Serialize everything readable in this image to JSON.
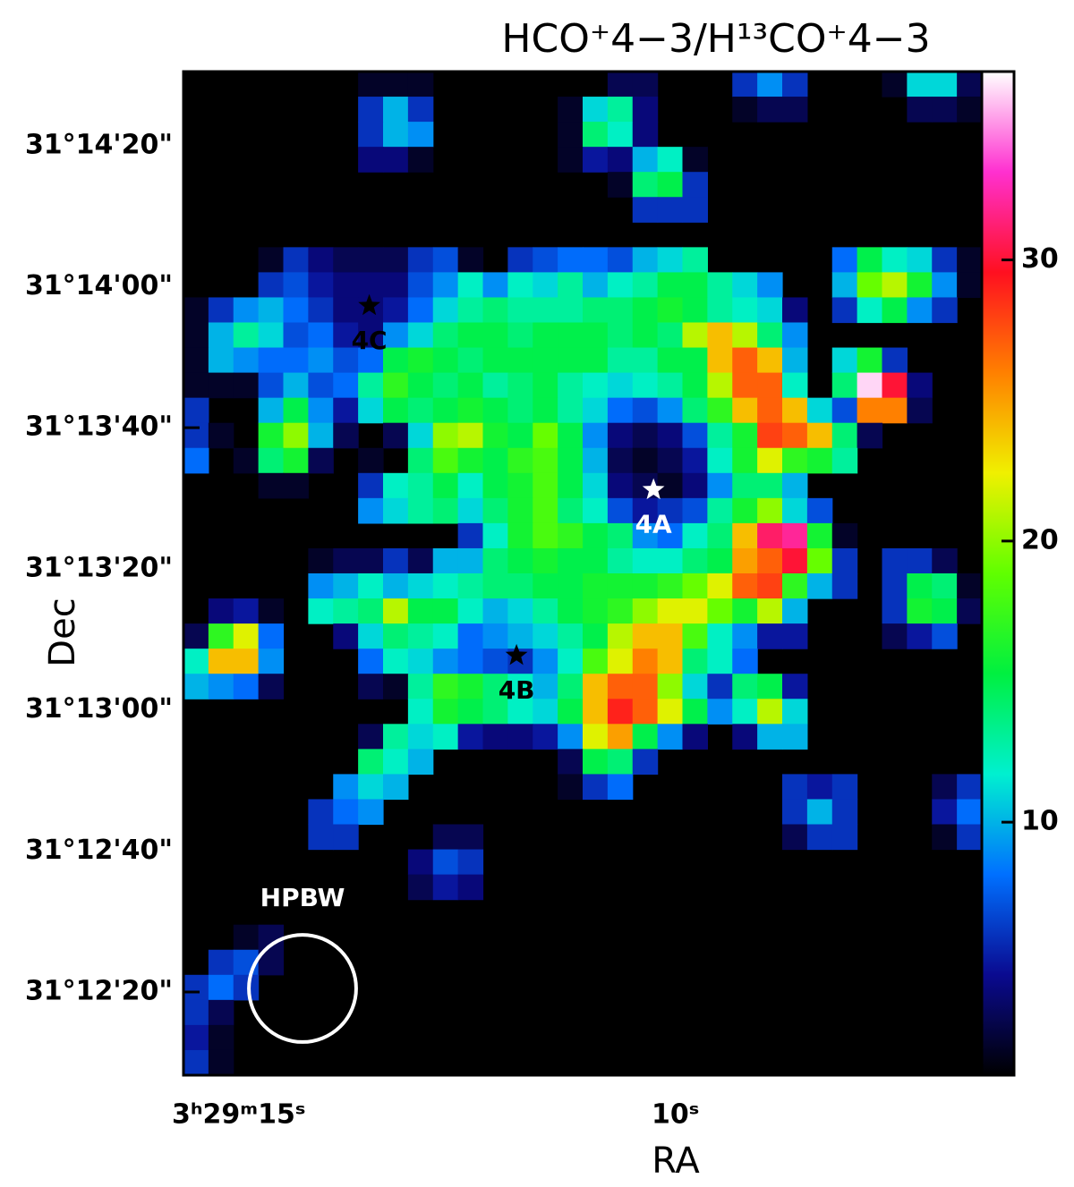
{
  "chart_data": {
    "type": "heatmap",
    "title": "HCO⁺4−3/H¹³CO⁺4−3",
    "x_label": "RA",
    "y_label": "Dec",
    "xlim": [
      16.55,
      6.41
    ],
    "xticks": [
      {
        "value": 15,
        "label": "3ʰ29ᵐ15ˢ"
      },
      {
        "value": 10,
        "label": "10ˢ"
      }
    ],
    "ylim": [
      728.2,
      870.5
    ],
    "yticks": [
      {
        "value": 860,
        "label": "31°14'20\""
      },
      {
        "value": 840,
        "label": "31°14'00\""
      },
      {
        "value": 820,
        "label": "31°13'40\""
      },
      {
        "value": 800,
        "label": "31°13'20\""
      },
      {
        "value": 780,
        "label": "31°13'00\""
      },
      {
        "value": 760,
        "label": "31°12'40\""
      },
      {
        "value": 740,
        "label": "31°12'20\""
      }
    ],
    "zlim": [
      1.0,
      36.7
    ],
    "zticks": [
      10,
      20,
      30
    ],
    "colorscale": [
      "#000000",
      "#0a0a90",
      "#0070ff",
      "#00f0d0",
      "#00f040",
      "#60ff00",
      "#f0f000",
      "#ff8000",
      "#ff1020",
      "#ff30d0",
      "#ffffff"
    ],
    "background": "#000000",
    "sources": [
      {
        "name": "4A",
        "ra": 10.58,
        "dec": 811.2,
        "color": "#ffffff"
      },
      {
        "name": "4B",
        "ra": 12.32,
        "dec": 787.7,
        "color": "#000000"
      },
      {
        "name": "4C",
        "ra": 14.19,
        "dec": 837.3,
        "color": "#000000"
      }
    ],
    "beam": {
      "label": "HPBW",
      "diameter": 15.2,
      "color": "#ffffff"
    },
    "values": [
      [
        null,
        null,
        null,
        null,
        null,
        null,
        null,
        2,
        2,
        2,
        null,
        null,
        null,
        null,
        null,
        null,
        null,
        3,
        3,
        null,
        null,
        null,
        6,
        9,
        6,
        null,
        null,
        null,
        2,
        11,
        11,
        3
      ],
      [
        null,
        null,
        null,
        null,
        null,
        null,
        null,
        6,
        10,
        6,
        null,
        null,
        null,
        null,
        null,
        2,
        11,
        13,
        4,
        null,
        null,
        null,
        2,
        3,
        3,
        null,
        null,
        null,
        null,
        3,
        3,
        2
      ],
      [
        null,
        null,
        null,
        null,
        null,
        null,
        null,
        6,
        10,
        9,
        null,
        null,
        null,
        null,
        null,
        2,
        14,
        12,
        4,
        null,
        null,
        null,
        null,
        null,
        null,
        null,
        null,
        null,
        null,
        null,
        null,
        null
      ],
      [
        null,
        null,
        null,
        null,
        null,
        null,
        null,
        4,
        4,
        2,
        null,
        null,
        null,
        null,
        null,
        2,
        5,
        4,
        10,
        12,
        2,
        null,
        null,
        null,
        null,
        null,
        null,
        null,
        null,
        null,
        null,
        null
      ],
      [
        null,
        null,
        null,
        null,
        null,
        null,
        null,
        null,
        null,
        null,
        null,
        null,
        null,
        null,
        null,
        null,
        null,
        2,
        14,
        15,
        6,
        null,
        null,
        null,
        null,
        null,
        null,
        null,
        null,
        null,
        null,
        null
      ],
      [
        null,
        null,
        null,
        null,
        null,
        null,
        null,
        null,
        null,
        null,
        null,
        null,
        null,
        null,
        null,
        null,
        null,
        null,
        6,
        6,
        6,
        null,
        null,
        null,
        null,
        null,
        null,
        null,
        null,
        null,
        null,
        null
      ],
      [
        null,
        null,
        null,
        null,
        null,
        null,
        null,
        null,
        null,
        null,
        null,
        null,
        null,
        null,
        null,
        null,
        null,
        null,
        null,
        null,
        null,
        null,
        null,
        null,
        null,
        null,
        null,
        null,
        null,
        null,
        null,
        null
      ],
      [
        null,
        null,
        null,
        2,
        6,
        4,
        3,
        3,
        3,
        6,
        7,
        2,
        null,
        6,
        7,
        8,
        8,
        7,
        10,
        11,
        13,
        null,
        null,
        null,
        null,
        null,
        8,
        15,
        12,
        11,
        6,
        2
      ],
      [
        null,
        null,
        null,
        6,
        7,
        5,
        4,
        4,
        4,
        7,
        9,
        12,
        9,
        12,
        11,
        13,
        10,
        12,
        13,
        15,
        15,
        13,
        11,
        9,
        null,
        null,
        10,
        19,
        21,
        16,
        9,
        2
      ],
      [
        2,
        6,
        9,
        10,
        8,
        6,
        4,
        4,
        5,
        8,
        11,
        13,
        14,
        13,
        13,
        13,
        14,
        14,
        15,
        16,
        15,
        13,
        12,
        11,
        4,
        null,
        6,
        12,
        15,
        9,
        6,
        null
      ],
      [
        2,
        10,
        13,
        11,
        7,
        8,
        5,
        4,
        9,
        11,
        14,
        15,
        15,
        14,
        15,
        15,
        15,
        14,
        15,
        14,
        21,
        24,
        21,
        14,
        9,
        null,
        null,
        null,
        null,
        null,
        null,
        null
      ],
      [
        2,
        10,
        9,
        8,
        8,
        9,
        7,
        8,
        15,
        16,
        15,
        14,
        15,
        15,
        15,
        15,
        15,
        13,
        13,
        15,
        15,
        24,
        27,
        24,
        10,
        null,
        11,
        16,
        6,
        null,
        null,
        null
      ],
      [
        2,
        2,
        2,
        7,
        10,
        7,
        8,
        13,
        17,
        15,
        14,
        15,
        13,
        14,
        15,
        13,
        12,
        11,
        12,
        13,
        15,
        21,
        27,
        27,
        12,
        null,
        14,
        36,
        30,
        4,
        null,
        null
      ],
      [
        6,
        null,
        null,
        10,
        15,
        9,
        5,
        11,
        15,
        14,
        15,
        16,
        15,
        14,
        15,
        13,
        11,
        8,
        7,
        9,
        14,
        17,
        24,
        27,
        24,
        11,
        7,
        26,
        26,
        3,
        null,
        null
      ],
      [
        6,
        2,
        null,
        16,
        20,
        10,
        3,
        null,
        3,
        11,
        20,
        21,
        16,
        15,
        19,
        15,
        9,
        4,
        3,
        4,
        7,
        13,
        16,
        28,
        27,
        24,
        14,
        3,
        null,
        null,
        null,
        null
      ],
      [
        8,
        null,
        2,
        14,
        16,
        3,
        null,
        2,
        null,
        14,
        18,
        16,
        15,
        17,
        18,
        15,
        10,
        3,
        2,
        3,
        5,
        12,
        16,
        22,
        17,
        16,
        13,
        null,
        null,
        null,
        null,
        null
      ],
      [
        null,
        null,
        null,
        2,
        2,
        null,
        null,
        6,
        12,
        13,
        15,
        12,
        15,
        16,
        18,
        15,
        11,
        4,
        3,
        2,
        4,
        9,
        14,
        14,
        10,
        null,
        null,
        null,
        null,
        null,
        null,
        null
      ],
      [
        null,
        null,
        null,
        null,
        null,
        null,
        null,
        9,
        11,
        13,
        14,
        11,
        14,
        16,
        18,
        14,
        12,
        7,
        5,
        6,
        7,
        13,
        16,
        20,
        11,
        7,
        null,
        null,
        null,
        null,
        null,
        null
      ],
      [
        null,
        null,
        null,
        null,
        null,
        null,
        null,
        null,
        null,
        null,
        null,
        6,
        12,
        16,
        18,
        17,
        15,
        14,
        9,
        8,
        12,
        14,
        24,
        31,
        32,
        16,
        2,
        null,
        null,
        null,
        null,
        null
      ],
      [
        null,
        null,
        null,
        null,
        null,
        2,
        3,
        3,
        6,
        3,
        10,
        10,
        14,
        15,
        16,
        15,
        15,
        13,
        12,
        12,
        14,
        15,
        25,
        27,
        30,
        19,
        6,
        null,
        6,
        6,
        3,
        null
      ],
      [
        null,
        null,
        null,
        null,
        null,
        9,
        10,
        12,
        10,
        11,
        12,
        13,
        14,
        14,
        15,
        15,
        16,
        16,
        16,
        17,
        19,
        22,
        27,
        28,
        17,
        10,
        6,
        null,
        6,
        15,
        14,
        2
      ],
      [
        null,
        4,
        5,
        2,
        null,
        12,
        13,
        14,
        21,
        15,
        15,
        12,
        10,
        11,
        13,
        15,
        16,
        17,
        20,
        22,
        22,
        19,
        16,
        21,
        10,
        null,
        null,
        null,
        6,
        16,
        15,
        3
      ],
      [
        3,
        17,
        22,
        8,
        null,
        null,
        4,
        11,
        14,
        13,
        12,
        8,
        9,
        10,
        11,
        13,
        15,
        21,
        24,
        24,
        18,
        12,
        9,
        5,
        5,
        null,
        null,
        null,
        3,
        5,
        7,
        null
      ],
      [
        12,
        24,
        24,
        9,
        null,
        null,
        null,
        8,
        12,
        11,
        9,
        8,
        7,
        6,
        9,
        12,
        18,
        22,
        26,
        24,
        14,
        12,
        8,
        null,
        null,
        null,
        null,
        null,
        null,
        null,
        null,
        null
      ],
      [
        10,
        9,
        8,
        3,
        null,
        null,
        null,
        3,
        2,
        13,
        17,
        16,
        14,
        12,
        10,
        14,
        24,
        27,
        27,
        20,
        11,
        6,
        14,
        15,
        5,
        null,
        null,
        null,
        null,
        null,
        null,
        null
      ],
      [
        null,
        null,
        null,
        null,
        null,
        null,
        null,
        null,
        null,
        12,
        16,
        15,
        14,
        12,
        11,
        15,
        24,
        29,
        27,
        22,
        15,
        9,
        12,
        21,
        11,
        null,
        null,
        null,
        null,
        null,
        null,
        null
      ],
      [
        null,
        null,
        null,
        null,
        null,
        null,
        null,
        3,
        13,
        11,
        12,
        5,
        4,
        4,
        5,
        9,
        22,
        25,
        15,
        9,
        4,
        null,
        4,
        10,
        10,
        null,
        null,
        null,
        null,
        null,
        null,
        null
      ],
      [
        null,
        null,
        null,
        null,
        null,
        null,
        null,
        14,
        12,
        10,
        null,
        null,
        null,
        null,
        null,
        3,
        15,
        14,
        6,
        null,
        null,
        null,
        null,
        null,
        null,
        null,
        null,
        null,
        null,
        null,
        null,
        null
      ],
      [
        null,
        null,
        null,
        null,
        null,
        null,
        9,
        11,
        10,
        null,
        null,
        null,
        null,
        null,
        null,
        2,
        6,
        8,
        null,
        null,
        null,
        null,
        null,
        null,
        6,
        5,
        6,
        null,
        null,
        null,
        3,
        6
      ],
      [
        null,
        null,
        null,
        null,
        null,
        6,
        8,
        9,
        null,
        null,
        null,
        null,
        null,
        null,
        null,
        null,
        null,
        null,
        null,
        null,
        null,
        null,
        null,
        null,
        6,
        10,
        6,
        null,
        null,
        null,
        5,
        8
      ],
      [
        null,
        null,
        null,
        null,
        null,
        6,
        6,
        null,
        null,
        null,
        3,
        3,
        null,
        null,
        null,
        null,
        null,
        null,
        null,
        null,
        null,
        null,
        null,
        null,
        3,
        6,
        6,
        null,
        null,
        null,
        2,
        6
      ],
      [
        null,
        null,
        null,
        null,
        null,
        null,
        null,
        null,
        null,
        4,
        7,
        6,
        null,
        null,
        null,
        null,
        null,
        null,
        null,
        null,
        null,
        null,
        null,
        null,
        null,
        null,
        null,
        null,
        null,
        null,
        null,
        null
      ],
      [
        null,
        null,
        null,
        null,
        null,
        null,
        null,
        null,
        null,
        3,
        5,
        4,
        null,
        null,
        null,
        null,
        null,
        null,
        null,
        null,
        null,
        null,
        null,
        null,
        null,
        null,
        null,
        null,
        null,
        null,
        null,
        null
      ],
      [
        null,
        null,
        null,
        null,
        null,
        null,
        null,
        null,
        null,
        null,
        null,
        null,
        null,
        null,
        null,
        null,
        null,
        null,
        null,
        null,
        null,
        null,
        null,
        null,
        null,
        null,
        null,
        null,
        null,
        null,
        null,
        null
      ],
      [
        null,
        null,
        2,
        3,
        null,
        null,
        null,
        null,
        null,
        null,
        null,
        null,
        null,
        null,
        null,
        null,
        null,
        null,
        null,
        null,
        null,
        null,
        null,
        null,
        null,
        null,
        null,
        null,
        null,
        null,
        null,
        null
      ],
      [
        null,
        6,
        7,
        3,
        null,
        null,
        null,
        null,
        null,
        null,
        null,
        null,
        null,
        null,
        null,
        null,
        null,
        null,
        null,
        null,
        null,
        null,
        null,
        null,
        null,
        null,
        null,
        null,
        null,
        null,
        null,
        null
      ],
      [
        6,
        8,
        6,
        null,
        null,
        null,
        null,
        null,
        null,
        null,
        null,
        null,
        null,
        null,
        null,
        null,
        null,
        null,
        null,
        null,
        null,
        null,
        null,
        null,
        null,
        null,
        null,
        null,
        null,
        null,
        null,
        null
      ],
      [
        6,
        3,
        null,
        null,
        null,
        null,
        null,
        null,
        null,
        null,
        null,
        null,
        null,
        null,
        null,
        null,
        null,
        null,
        null,
        null,
        null,
        null,
        null,
        null,
        null,
        null,
        null,
        null,
        null,
        null,
        null,
        null
      ],
      [
        5,
        2,
        null,
        null,
        null,
        null,
        null,
        null,
        null,
        null,
        null,
        null,
        null,
        null,
        null,
        null,
        null,
        null,
        null,
        null,
        null,
        null,
        null,
        null,
        null,
        null,
        null,
        null,
        null,
        null,
        null,
        null
      ],
      [
        6,
        2,
        null,
        null,
        null,
        null,
        null,
        null,
        null,
        null,
        null,
        null,
        null,
        null,
        null,
        null,
        null,
        null,
        null,
        null,
        null,
        null,
        null,
        null,
        null,
        null,
        null,
        null,
        null,
        null,
        null,
        null
      ]
    ]
  }
}
